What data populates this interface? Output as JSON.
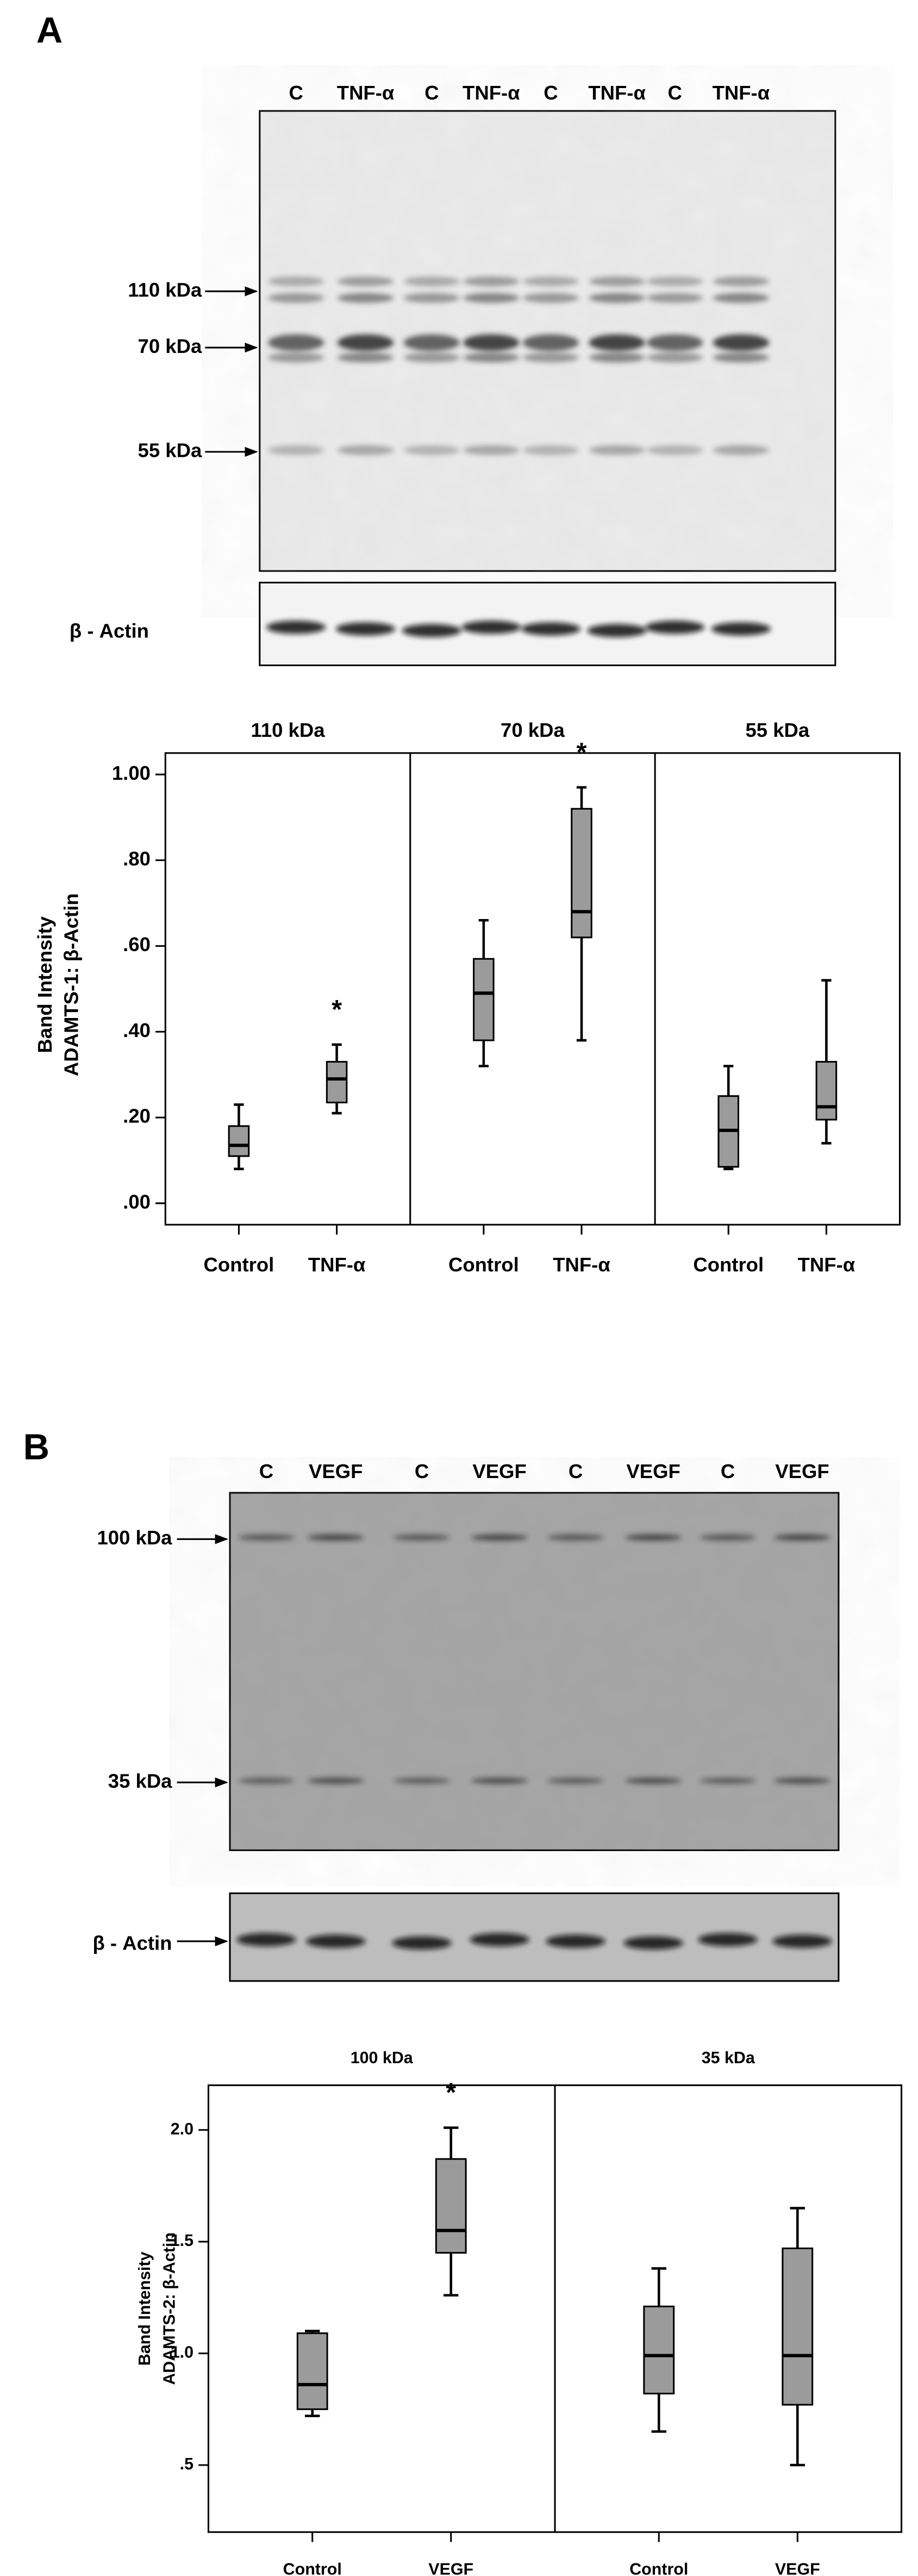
{
  "panels": [
    {
      "label": "A",
      "blot": {
        "lanes": [
          "C",
          "TNF-α",
          "C",
          "TNF-α",
          "C",
          "TNF-α",
          "C",
          "TNF-α"
        ],
        "markers": [
          "110 kDa",
          "70 kDa",
          "55 kDa"
        ],
        "loading_control": "β - Actin"
      }
    },
    {
      "label": "B",
      "blot": {
        "lanes": [
          "C",
          "VEGF",
          "C",
          "VEGF",
          "C",
          "VEGF",
          "C",
          "VEGF"
        ],
        "markers": [
          "100 kDa",
          "35 kDa"
        ],
        "loading_control": "β - Actin"
      }
    }
  ],
  "chart_data": [
    {
      "type": "box",
      "ylabel": [
        "Band Intensity",
        "ADAMTS-1: β-Actin"
      ],
      "categories": [
        "Control",
        "TNF-α"
      ],
      "ylim": [
        -0.05,
        1.05
      ],
      "yticks": [
        {
          "value": 0,
          "label": ".00"
        },
        {
          "value": 0.2,
          "label": ".20"
        },
        {
          "value": 0.4,
          "label": ".40"
        },
        {
          "value": 0.6,
          "label": ".60"
        },
        {
          "value": 0.8,
          "label": ".80"
        },
        {
          "value": 1,
          "label": "1.00"
        }
      ],
      "facets": [
        {
          "title": "110 kDa",
          "boxes": [
            {
              "whisker_low": 0.08,
              "q1": 0.11,
              "median": 0.135,
              "q3": 0.18,
              "whisker_high": 0.23
            },
            {
              "whisker_low": 0.21,
              "q1": 0.235,
              "median": 0.29,
              "q3": 0.33,
              "whisker_high": 0.37,
              "annotation": "*"
            }
          ]
        },
        {
          "title": "70 kDa",
          "boxes": [
            {
              "whisker_low": 0.32,
              "q1": 0.38,
              "median": 0.49,
              "q3": 0.57,
              "whisker_high": 0.66
            },
            {
              "whisker_low": 0.38,
              "q1": 0.62,
              "median": 0.68,
              "q3": 0.92,
              "whisker_high": 0.97,
              "annotation": "*"
            }
          ]
        },
        {
          "title": "55 kDa",
          "boxes": [
            {
              "whisker_low": 0.08,
              "q1": 0.085,
              "median": 0.17,
              "q3": 0.25,
              "whisker_high": 0.32
            },
            {
              "whisker_low": 0.14,
              "q1": 0.195,
              "median": 0.225,
              "q3": 0.33,
              "whisker_high": 0.52
            }
          ]
        }
      ]
    },
    {
      "type": "box",
      "ylabel": [
        "Band Intensity",
        "ADAMTS-2: β-Actin"
      ],
      "categories": [
        "Control",
        "VEGF"
      ],
      "ylim": [
        0.2,
        2.2
      ],
      "yticks": [
        {
          "value": 0.5,
          "label": ".5"
        },
        {
          "value": 1,
          "label": "1.0"
        },
        {
          "value": 1.5,
          "label": "1.5"
        },
        {
          "value": 2,
          "label": "2.0"
        }
      ],
      "facets": [
        {
          "title": "100 kDa",
          "boxes": [
            {
              "whisker_low": 0.72,
              "q1": 0.75,
              "median": 0.86,
              "q3": 1.09,
              "whisker_high": 1.1
            },
            {
              "whisker_low": 1.26,
              "q1": 1.45,
              "median": 1.55,
              "q3": 1.87,
              "whisker_high": 2.01,
              "annotation": "*"
            }
          ]
        },
        {
          "title": "35 kDa",
          "boxes": [
            {
              "whisker_low": 0.65,
              "q1": 0.82,
              "median": 0.99,
              "q3": 1.21,
              "whisker_high": 1.38
            },
            {
              "whisker_low": 0.5,
              "q1": 0.77,
              "median": 0.99,
              "q3": 1.47,
              "whisker_high": 1.65
            }
          ]
        }
      ]
    }
  ]
}
